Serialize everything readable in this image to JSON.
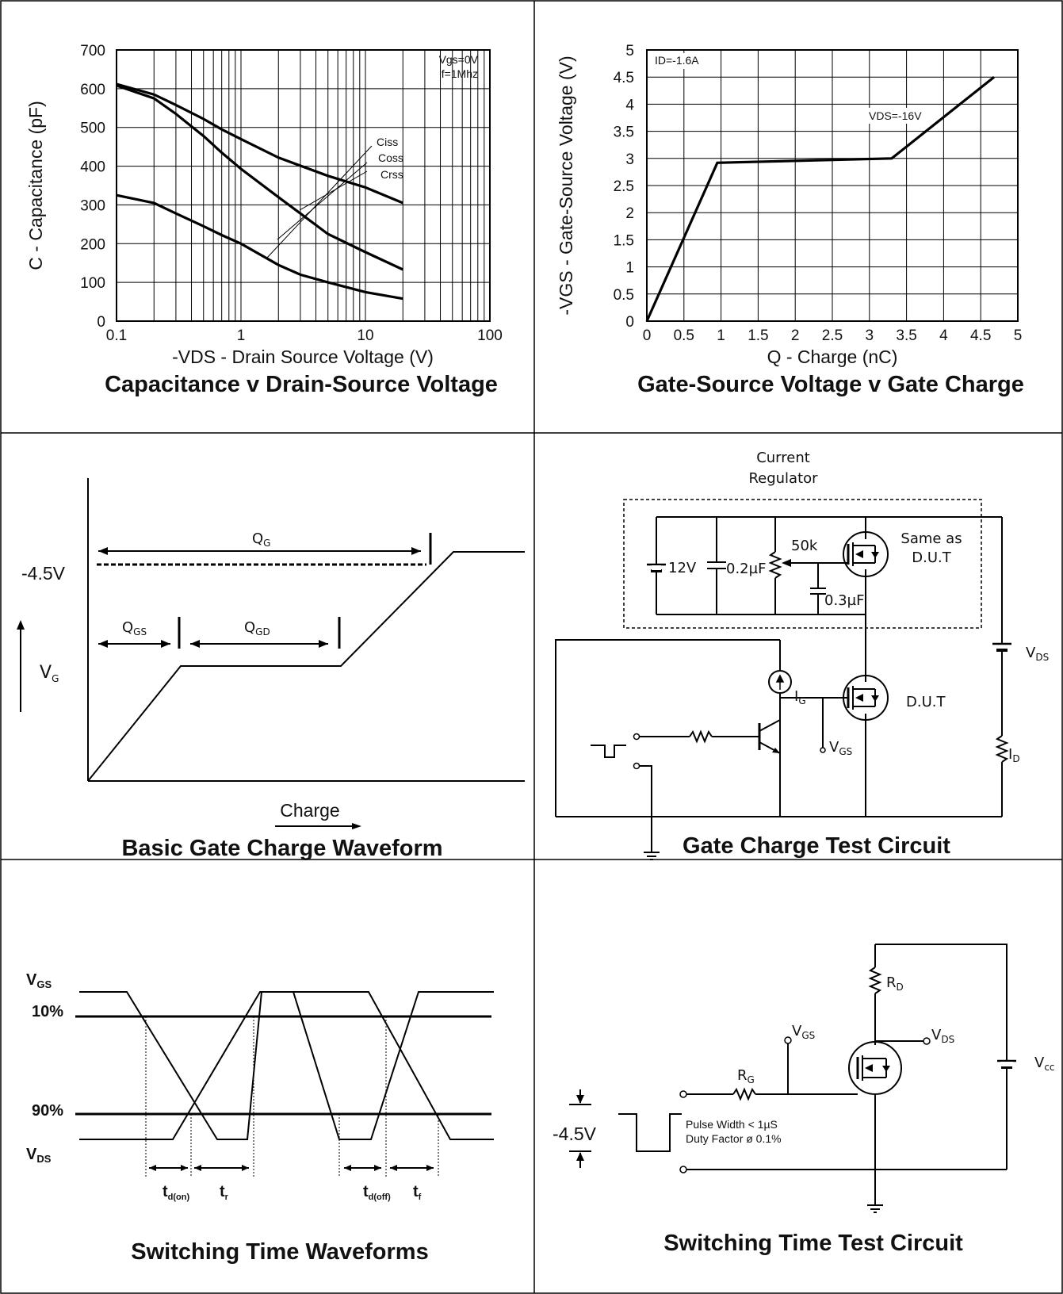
{
  "chart_data": [
    {
      "type": "line",
      "title": "Capacitance v Drain-Source Voltage",
      "xlabel": "-VDS - Drain Source Voltage (V)",
      "ylabel": "C - Capacitance (pF)",
      "xscale": "log",
      "xlim": [
        0.1,
        100
      ],
      "ylim": [
        0,
        700
      ],
      "x_ticks": [
        "0.1",
        "1",
        "10",
        "100"
      ],
      "y_ticks": [
        "0",
        "100",
        "200",
        "300",
        "400",
        "500",
        "600",
        "700"
      ],
      "grid": true,
      "conditions": [
        "Vgs=0V",
        "f=1Mhz"
      ],
      "series": [
        {
          "name": "Ciss",
          "points": [
            [
              0.1,
              612
            ],
            [
              0.2,
              585
            ],
            [
              0.3,
              558
            ],
            [
              0.5,
              522
            ],
            [
              0.7,
              495
            ],
            [
              1,
              470
            ],
            [
              2,
              422
            ],
            [
              5,
              375
            ],
            [
              10,
              345
            ],
            [
              20,
              305
            ]
          ]
        },
        {
          "name": "Coss",
          "points": [
            [
              0.1,
              608
            ],
            [
              0.2,
              575
            ],
            [
              0.3,
              535
            ],
            [
              0.5,
              478
            ],
            [
              0.7,
              435
            ],
            [
              1,
              393
            ],
            [
              2,
              320
            ],
            [
              3,
              278
            ],
            [
              5,
              225
            ],
            [
              10,
              178
            ],
            [
              20,
              133
            ]
          ]
        },
        {
          "name": "Crss",
          "points": [
            [
              0.1,
              325
            ],
            [
              0.2,
              305
            ],
            [
              0.3,
              278
            ],
            [
              0.5,
              245
            ],
            [
              0.7,
              222
            ],
            [
              1,
              200
            ],
            [
              2,
              145
            ],
            [
              3,
              120
            ],
            [
              5,
              100
            ],
            [
              10,
              75
            ],
            [
              20,
              58
            ]
          ]
        }
      ]
    },
    {
      "type": "line",
      "title": "Gate-Source Voltage v Gate Charge",
      "xlabel": "Q - Charge (nC)",
      "ylabel": "-VGS - Gate-Source Voltage (V)",
      "xlim": [
        0,
        5
      ],
      "ylim": [
        0,
        5
      ],
      "x_ticks": [
        "0",
        "0.5",
        "1",
        "1.5",
        "2",
        "2.5",
        "3",
        "3.5",
        "4",
        "4.5",
        "5"
      ],
      "y_ticks": [
        "0",
        "0.5",
        "1",
        "1.5",
        "2",
        "2.5",
        "3",
        "3.5",
        "4",
        "4.5",
        "5"
      ],
      "grid": true,
      "annotations": [
        "ID=-1.6A",
        "VDS=-16V"
      ],
      "series": [
        {
          "points": [
            [
              0,
              0
            ],
            [
              0.95,
              2.92
            ],
            [
              3.3,
              3.0
            ],
            [
              4.68,
              4.5
            ]
          ]
        }
      ]
    }
  ],
  "gate_waveform": {
    "title": "Basic Gate Charge Waveform",
    "level_label": "-4.5V",
    "qg": "Q",
    "qg_sub": "G",
    "qgs": "Q",
    "qgs_sub": "GS",
    "qgd": "Q",
    "qgd_sub": "GD",
    "vg": "V",
    "vg_sub": "G",
    "charge_label": "Charge"
  },
  "gate_circuit": {
    "title": "Gate Charge Test Circuit",
    "regulator_label_1": "Current",
    "regulator_label_2": "Regulator",
    "battery": "12V",
    "cap1": "0.2µF",
    "pot": "50k",
    "cap2": "0.3µF",
    "same_as_1": "Same as",
    "same_as_2": "D.U.T",
    "dut": "D.U.T",
    "ig": "I",
    "ig_sub": "G",
    "vgs": "V",
    "vgs_sub": "GS",
    "vds": "V",
    "vds_sub": "DS",
    "id": "I",
    "id_sub": "D"
  },
  "switch_waveform": {
    "title": "Switching Time Waveforms",
    "vgs": "V",
    "vgs_sub": "GS",
    "p10": "10%",
    "p90": "90%",
    "vds": "V",
    "vds_sub": "DS",
    "tdon": "t",
    "tdon_sub": "d(on)",
    "tr": "t",
    "tr_sub": "r",
    "tdoff": "t",
    "tdoff_sub": "d(off)",
    "tf": "t",
    "tf_sub": "f"
  },
  "switch_circuit": {
    "title": "Switching Time Test Circuit",
    "rd": "R",
    "rd_sub": "D",
    "vgs": "V",
    "vgs_sub": "GS",
    "vds": "V",
    "vds_sub": "DS",
    "rg": "R",
    "rg_sub": "G",
    "vcc": "V",
    "vcc_sub": "cc",
    "level": "-4.5V",
    "pulse_1": "Pulse Width < 1µS",
    "pulse_2": "Duty Factor ø 0.1%"
  }
}
